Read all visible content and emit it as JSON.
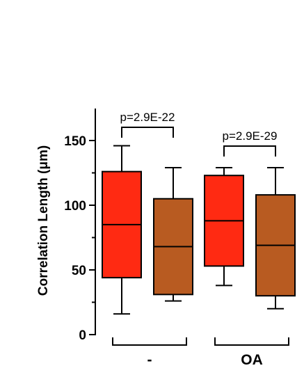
{
  "chart_data": {
    "type": "box",
    "ylabel": "Correlation Length (μm)",
    "ylim": [
      0,
      172
    ],
    "yticks": [
      0,
      50,
      100,
      150
    ],
    "ytick_labels": [
      "0",
      "50",
      "100",
      "150"
    ],
    "groups": [
      {
        "label": "-",
        "boxes": [
          0,
          1
        ]
      },
      {
        "label": "OA",
        "boxes": [
          2,
          3
        ]
      }
    ],
    "boxes": [
      {
        "min": 16,
        "q1": 44,
        "median": 85,
        "q3": 126,
        "max": 146,
        "color": "#ff2a12"
      },
      {
        "min": 26,
        "q1": 31,
        "median": 68,
        "q3": 105,
        "max": 129,
        "color": "#b85b21"
      },
      {
        "min": 38,
        "q1": 53,
        "median": 88,
        "q3": 123,
        "max": 129,
        "color": "#ff2a12"
      },
      {
        "min": 20,
        "q1": 30,
        "median": 69,
        "q3": 108,
        "max": 129,
        "color": "#b85b21"
      }
    ],
    "comparisons": [
      {
        "boxes": [
          0,
          1
        ],
        "label": "p=2.9E-22"
      },
      {
        "boxes": [
          2,
          3
        ],
        "label": "p=2.9E-29"
      }
    ]
  }
}
